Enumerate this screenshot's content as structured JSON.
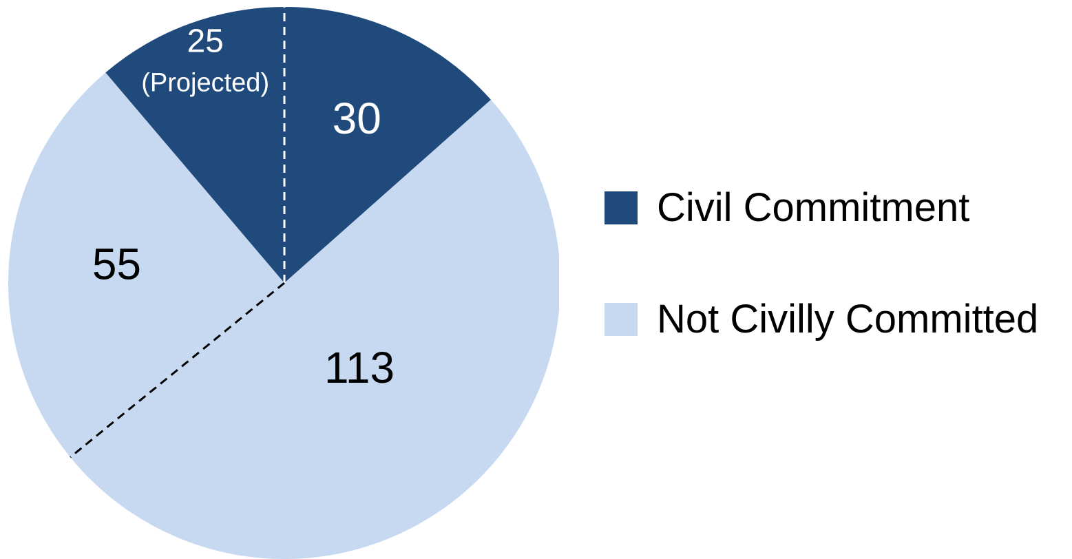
{
  "chart_data": {
    "type": "pie",
    "slices": [
      {
        "label": "30",
        "value": 30,
        "category": "Civil Commitment",
        "color": "#214a7c",
        "text_color": "#ffffff",
        "label_size": 64
      },
      {
        "label": "113",
        "value": 113,
        "category": "Not Civilly Committed",
        "color": "#c6d9f0",
        "text_color": "#000000",
        "label_size": 64
      },
      {
        "label": "55",
        "value": 55,
        "category": "Not Civilly Committed",
        "color": "#c6d9f0",
        "text_color": "#000000",
        "label_size": 64
      },
      {
        "label": "25",
        "sublabel": "(Projected)",
        "value": 25,
        "category": "Civil Commitment",
        "color": "#214a7c",
        "text_color": "#ffffff",
        "label_size": 48
      }
    ],
    "start_angle": "12 o'clock, clockwise",
    "divider_lines": [
      "dashed white line between 30 and 25",
      "dashed black line between 113 and 55"
    ],
    "legend": [
      {
        "label": "Civil Commitment",
        "color": "#214a7c"
      },
      {
        "label": "Not Civilly Committed",
        "color": "#c6d9f0"
      }
    ],
    "legend_position": "right"
  }
}
